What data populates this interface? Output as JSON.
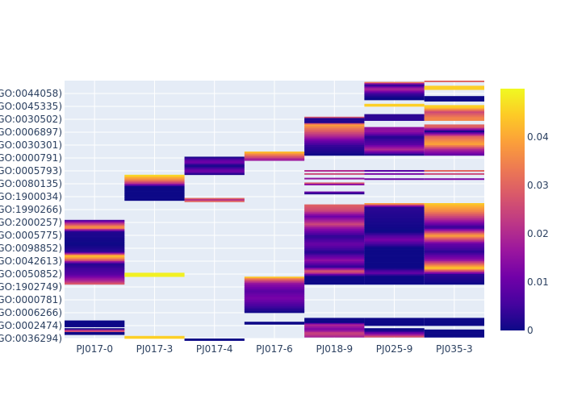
{
  "chart_data": {
    "type": "heatmap",
    "title": "",
    "xlabel": "",
    "ylabel": "",
    "x_categories": [
      "PJ017-0",
      "PJ017-3",
      "PJ017-4",
      "PJ017-6",
      "PJ018-9",
      "PJ025-9",
      "PJ035-3"
    ],
    "y_tick_labels": [
      "GO:0044058)",
      "GO:0045335)",
      "GO:0030502)",
      "GO:0006897)",
      "GO:0030301)",
      "GO:0000791)",
      "GO:0005793)",
      "GO:0080135)",
      "GO:1900034)",
      "GO:1990266)",
      "GO:2000257)",
      "GO:0005775)",
      "GO:0098852)",
      "GO:0042613)",
      "GO:0050852)",
      "GO:1902749)",
      "GO:0000781)",
      "GO:0006266)",
      "GO:0002474)",
      "GO:0036294)"
    ],
    "y_range": [
      0,
      100
    ],
    "y_ticks_at": [
      95,
      90,
      85,
      80,
      75,
      70,
      65,
      60,
      55,
      50,
      45,
      40,
      35,
      30,
      25,
      20,
      15,
      10,
      5,
      0
    ],
    "colorscale": "plasma",
    "colorscale_stops": [
      "#0d0887",
      "#46039f",
      "#7201a8",
      "#9c179e",
      "#bd3786",
      "#d8576b",
      "#ed7953",
      "#fb9f3a",
      "#fdca26",
      "#f0f921"
    ],
    "colorbar": {
      "range": [
        0,
        0.05
      ],
      "ticks": [
        0,
        0.01,
        0.02,
        0.03,
        0.04
      ],
      "tick_labels": [
        "0",
        "0.01",
        "0.02",
        "0.03",
        "0.04"
      ]
    },
    "blocks": [
      {
        "sample": "PJ017-0",
        "y0": 46.0,
        "y1": 21.0,
        "stops": [
          [
            0,
            0.003
          ],
          [
            0.05,
            0.02
          ],
          [
            0.12,
            0.04
          ],
          [
            0.18,
            0.002
          ],
          [
            0.38,
            0.0
          ],
          [
            0.5,
            0.003
          ],
          [
            0.56,
            0.045
          ],
          [
            0.62,
            0.03
          ],
          [
            0.68,
            0.002
          ],
          [
            0.85,
            0.008
          ],
          [
            0.95,
            0.02
          ],
          [
            1,
            0.03
          ]
        ]
      },
      {
        "sample": "PJ017-0",
        "y0": 7.0,
        "y1": 1.5,
        "stops": [
          [
            0,
            0.0
          ],
          [
            0.2,
            0.0
          ],
          [
            0.28,
            null
          ],
          [
            0.35,
            0.0
          ],
          [
            0.5,
            null
          ],
          [
            0.6,
            0.0
          ],
          [
            0.75,
            0.035
          ],
          [
            0.85,
            0.0
          ],
          [
            1,
            0.0
          ]
        ]
      },
      {
        "sample": "PJ017-3",
        "y0": 63.5,
        "y1": 53.5,
        "stops": [
          [
            0,
            0.048
          ],
          [
            0.2,
            0.035
          ],
          [
            0.35,
            0.02
          ],
          [
            0.45,
            0.0
          ],
          [
            1,
            0.0
          ]
        ]
      },
      {
        "sample": "PJ017-3",
        "y0": 25.5,
        "y1": 24.0,
        "stops": [
          [
            0,
            0.049
          ],
          [
            1,
            0.049
          ]
        ]
      },
      {
        "sample": "PJ017-3",
        "y0": 1.0,
        "y1": 0.0,
        "stops": [
          [
            0,
            0.045
          ],
          [
            1,
            0.045
          ]
        ]
      },
      {
        "sample": "PJ017-4",
        "y0": 70.5,
        "y1": 63.5,
        "stops": [
          [
            0,
            0.0
          ],
          [
            0.3,
            0.012
          ],
          [
            0.5,
            0.0
          ],
          [
            0.8,
            0.012
          ],
          [
            1,
            0.0
          ]
        ]
      },
      {
        "sample": "PJ017-4",
        "y0": 54.5,
        "y1": 53.0,
        "stops": [
          [
            0,
            0.035
          ],
          [
            0.5,
            0.02
          ],
          [
            1,
            0.035
          ]
        ]
      },
      {
        "sample": "PJ017-4",
        "y0": 0.0,
        "y1": -0.8,
        "stops": [
          [
            0,
            0.0
          ],
          [
            1,
            0.0
          ]
        ]
      },
      {
        "sample": "PJ017-6",
        "y0": 72.5,
        "y1": 69.0,
        "stops": [
          [
            0,
            0.045
          ],
          [
            0.5,
            0.03
          ],
          [
            1,
            0.015
          ]
        ]
      },
      {
        "sample": "PJ017-6",
        "y0": 24.0,
        "y1": 10.0,
        "stops": [
          [
            0,
            0.048
          ],
          [
            0.08,
            0.03
          ],
          [
            0.2,
            0.015
          ],
          [
            0.4,
            0.008
          ],
          [
            0.6,
            0.012
          ],
          [
            0.8,
            0.006
          ],
          [
            1,
            0.0
          ]
        ]
      },
      {
        "sample": "PJ017-6",
        "y0": 6.5,
        "y1": 5.5,
        "stops": [
          [
            0,
            0.0
          ],
          [
            1,
            0.0
          ]
        ]
      },
      {
        "sample": "PJ018-9",
        "y0": 86.0,
        "y1": 71.0,
        "stops": [
          [
            0,
            0.045
          ],
          [
            0.04,
            0.002
          ],
          [
            0.15,
            0.002
          ],
          [
            0.2,
            0.04
          ],
          [
            0.35,
            0.03
          ],
          [
            0.5,
            0.02
          ],
          [
            0.6,
            0.012
          ],
          [
            0.75,
            0.004
          ],
          [
            1,
            0.0
          ]
        ]
      },
      {
        "sample": "PJ018-9",
        "y0": 60.5,
        "y1": 56.0,
        "stops": [
          [
            0,
            0.035
          ],
          [
            0.15,
            0.015
          ],
          [
            0.3,
            null
          ],
          [
            0.7,
            null
          ],
          [
            0.8,
            0.012
          ],
          [
            1,
            0.0
          ]
        ]
      },
      {
        "sample": "PJ018-9",
        "y0": 52.0,
        "y1": 21.0,
        "stops": [
          [
            0,
            0.03
          ],
          [
            0.08,
            0.025
          ],
          [
            0.15,
            0.01
          ],
          [
            0.25,
            0.025
          ],
          [
            0.3,
            0.015
          ],
          [
            0.4,
            0.003
          ],
          [
            0.5,
            0.01
          ],
          [
            0.6,
            0.002
          ],
          [
            0.7,
            0.015
          ],
          [
            0.78,
            0.003
          ],
          [
            0.84,
            0.03
          ],
          [
            0.9,
            0.0
          ],
          [
            1,
            0.0
          ]
        ]
      },
      {
        "sample": "PJ018-9",
        "y0": 8.0,
        "y1": 0.5,
        "stops": [
          [
            0,
            0.0
          ],
          [
            0.25,
            0.0
          ],
          [
            0.35,
            0.02
          ],
          [
            0.6,
            0.012
          ],
          [
            0.8,
            0.025
          ],
          [
            1,
            0.018
          ]
        ]
      },
      {
        "sample": "PJ025-9",
        "y0": 99.5,
        "y1": 71.0,
        "stops": [
          [
            0,
            0.04
          ],
          [
            0.04,
            0.002
          ],
          [
            0.1,
            0.02
          ],
          [
            0.16,
            0.005
          ],
          [
            0.22,
            0.0
          ],
          [
            0.28,
            null
          ],
          [
            0.32,
            0.045
          ],
          [
            0.36,
            null
          ],
          [
            0.5,
            0.003
          ],
          [
            0.55,
            null
          ],
          [
            0.68,
            0.015
          ],
          [
            0.75,
            0.002
          ],
          [
            0.85,
            0.008
          ],
          [
            0.92,
            0.02
          ],
          [
            1,
            0.0
          ]
        ]
      },
      {
        "sample": "PJ025-9",
        "y0": 52.5,
        "y1": 21.0,
        "stops": [
          [
            0,
            0.045
          ],
          [
            0.05,
            0.003
          ],
          [
            0.35,
            0.0
          ],
          [
            0.45,
            0.012
          ],
          [
            0.55,
            0.0
          ],
          [
            0.8,
            0.0
          ],
          [
            0.86,
            0.01
          ],
          [
            0.9,
            0.0
          ],
          [
            1,
            0.0
          ]
        ]
      },
      {
        "sample": "PJ025-9",
        "y0": 8.0,
        "y1": 0.5,
        "stops": [
          [
            0,
            0.0
          ],
          [
            0.3,
            0.0
          ],
          [
            0.45,
            null
          ],
          [
            0.65,
            0.0
          ],
          [
            0.85,
            0.015
          ],
          [
            1,
            0.03
          ]
        ]
      },
      {
        "sample": "PJ035-3",
        "y0": 100.0,
        "y1": 71.0,
        "stops": [
          [
            0,
            0.03
          ],
          [
            0.05,
            null
          ],
          [
            0.1,
            0.045
          ],
          [
            0.15,
            null
          ],
          [
            0.25,
            0.0
          ],
          [
            0.3,
            null
          ],
          [
            0.36,
            0.045
          ],
          [
            0.42,
            0.025
          ],
          [
            0.5,
            0.035
          ],
          [
            0.56,
            null
          ],
          [
            0.62,
            0.03
          ],
          [
            0.68,
            0.0
          ],
          [
            0.75,
            0.03
          ],
          [
            0.85,
            0.04
          ],
          [
            0.92,
            0.02
          ],
          [
            1,
            0.008
          ]
        ]
      },
      {
        "sample": "PJ035-3",
        "y0": 52.5,
        "y1": 21.0,
        "stops": [
          [
            0,
            0.045
          ],
          [
            0.1,
            0.035
          ],
          [
            0.2,
            0.02
          ],
          [
            0.3,
            0.003
          ],
          [
            0.4,
            0.04
          ],
          [
            0.5,
            0.01
          ],
          [
            0.6,
            0.003
          ],
          [
            0.7,
            0.015
          ],
          [
            0.8,
            0.045
          ],
          [
            0.88,
            0.003
          ],
          [
            1,
            0.0
          ]
        ]
      },
      {
        "sample": "PJ035-3",
        "y0": 8.0,
        "y1": 0.5,
        "stops": [
          [
            0,
            0.0
          ],
          [
            0.3,
            0.0
          ],
          [
            0.45,
            null
          ],
          [
            0.7,
            0.0
          ],
          [
            1,
            0.0
          ]
        ]
      }
    ],
    "stripes": [
      {
        "sample": "PJ018-9",
        "y": 65.0,
        "value": 0.02
      },
      {
        "sample": "PJ018-9",
        "y": 63.8,
        "value": 0.025
      },
      {
        "sample": "PJ018-9",
        "y": 62.0,
        "value": 0.015
      },
      {
        "sample": "PJ025-9",
        "y": 65.0,
        "value": 0.008
      },
      {
        "sample": "PJ025-9",
        "y": 63.8,
        "value": 0.012
      },
      {
        "sample": "PJ025-9",
        "y": 61.8,
        "value": 0.01
      },
      {
        "sample": "PJ035-3",
        "y": 65.0,
        "value": 0.03
      },
      {
        "sample": "PJ035-3",
        "y": 63.8,
        "value": 0.025
      },
      {
        "sample": "PJ035-3",
        "y": 61.8,
        "value": 0.012
      }
    ]
  }
}
